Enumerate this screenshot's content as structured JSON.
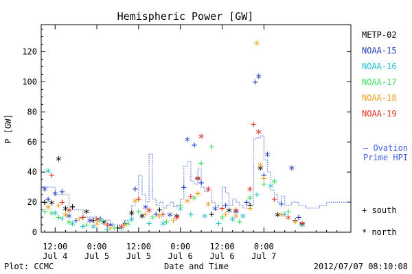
{
  "chart_data": {
    "type": "scatter",
    "title": "Hemispheric Power [GW]",
    "xlabel": "Date and Time",
    "ylabel": "P [GW]",
    "ylim": [
      0,
      138
    ],
    "xlim": [
      -4,
      85
    ],
    "yticks": [
      0,
      20,
      40,
      60,
      80,
      100,
      120
    ],
    "xticks": [
      {
        "x": 0,
        "time": "12:00",
        "date": "Jul 4"
      },
      {
        "x": 12,
        "time": "0:00",
        "date": "Jul 5"
      },
      {
        "x": 24,
        "time": "12:00",
        "date": "Jul 5"
      },
      {
        "x": 36,
        "time": "0:00",
        "date": "Jul 6"
      },
      {
        "x": 48,
        "time": "12:00",
        "date": "Jul 6"
      },
      {
        "x": 60,
        "time": "0:00",
        "date": "Jul 7"
      }
    ],
    "x_units": "hours after Jul 4 12:00",
    "series": [
      {
        "name": "METP-02",
        "color": "#000000",
        "points": [
          {
            "x": -3,
            "y": 20,
            "m": "+"
          },
          {
            "x": -1,
            "y": 19,
            "m": "*"
          },
          {
            "x": 1,
            "y": 48,
            "m": "*"
          },
          {
            "x": 3,
            "y": 15,
            "m": "*"
          },
          {
            "x": 5,
            "y": 17,
            "m": "+"
          },
          {
            "x": 9,
            "y": 13,
            "m": "*"
          },
          {
            "x": 11,
            "y": 8,
            "m": "+"
          },
          {
            "x": 14,
            "y": 6,
            "m": "*"
          },
          {
            "x": 18,
            "y": 3,
            "m": "+"
          },
          {
            "x": 22,
            "y": 12,
            "m": "*"
          },
          {
            "x": 25,
            "y": 10,
            "m": "*"
          },
          {
            "x": 30,
            "y": 15,
            "m": "+"
          },
          {
            "x": 35,
            "y": 10,
            "m": "*"
          },
          {
            "x": 41,
            "y": 35,
            "m": "*"
          },
          {
            "x": 45,
            "y": 12,
            "m": "+"
          },
          {
            "x": 50,
            "y": 14,
            "m": "*"
          },
          {
            "x": 56,
            "y": 18,
            "m": "+"
          },
          {
            "x": 59,
            "y": 42,
            "m": "*"
          },
          {
            "x": 64,
            "y": 11,
            "m": "*"
          },
          {
            "x": 69,
            "y": 8,
            "m": "+"
          },
          {
            "x": 71,
            "y": 5,
            "m": "*"
          }
        ]
      },
      {
        "name": "NOAA-15",
        "color": "#1f3fbf",
        "points": [
          {
            "x": -3,
            "y": 28,
            "m": "*"
          },
          {
            "x": -2,
            "y": 22,
            "m": "+"
          },
          {
            "x": 0,
            "y": 25,
            "m": "*"
          },
          {
            "x": 2,
            "y": 27,
            "m": "+"
          },
          {
            "x": 4,
            "y": 10,
            "m": "*"
          },
          {
            "x": 6,
            "y": 8,
            "m": "+"
          },
          {
            "x": 10,
            "y": 7,
            "m": "*"
          },
          {
            "x": 13,
            "y": 9,
            "m": "+"
          },
          {
            "x": 16,
            "y": 4,
            "m": "*"
          },
          {
            "x": 20,
            "y": 6,
            "m": "+"
          },
          {
            "x": 23,
            "y": 29,
            "m": "+"
          },
          {
            "x": 26,
            "y": 16,
            "m": "*"
          },
          {
            "x": 29,
            "y": 12,
            "m": "+"
          },
          {
            "x": 33,
            "y": 11,
            "m": "*"
          },
          {
            "x": 37,
            "y": 30,
            "m": "+"
          },
          {
            "x": 38,
            "y": 61,
            "m": "*"
          },
          {
            "x": 40,
            "y": 58,
            "m": "+"
          },
          {
            "x": 42,
            "y": 33,
            "m": "+"
          },
          {
            "x": 46,
            "y": 15,
            "m": "*"
          },
          {
            "x": 49,
            "y": 18,
            "m": "+"
          },
          {
            "x": 52,
            "y": 13,
            "m": "*"
          },
          {
            "x": 55,
            "y": 20,
            "m": "+"
          },
          {
            "x": 57.5,
            "y": 100,
            "m": "+"
          },
          {
            "x": 58.5,
            "y": 103,
            "m": "*"
          },
          {
            "x": 61,
            "y": 51,
            "m": "*"
          },
          {
            "x": 60,
            "y": 38,
            "m": "+"
          },
          {
            "x": 65,
            "y": 19,
            "m": "+"
          },
          {
            "x": 68,
            "y": 42,
            "m": "*"
          },
          {
            "x": 70,
            "y": 10,
            "m": "+"
          }
        ]
      },
      {
        "name": "NOAA-16",
        "color": "#1fbfcf",
        "points": [
          {
            "x": -2,
            "y": 40,
            "m": "*"
          },
          {
            "x": 0,
            "y": 12,
            "m": "*"
          },
          {
            "x": 2,
            "y": 9,
            "m": "+"
          },
          {
            "x": 5,
            "y": 5,
            "m": "*"
          },
          {
            "x": 8,
            "y": 4,
            "m": "+"
          },
          {
            "x": 11,
            "y": 3,
            "m": "*"
          },
          {
            "x": 15,
            "y": 2,
            "m": "+"
          },
          {
            "x": 19,
            "y": 2,
            "m": "*"
          },
          {
            "x": 22,
            "y": 8,
            "m": "*"
          },
          {
            "x": 27,
            "y": 6,
            "m": "+"
          },
          {
            "x": 31,
            "y": 5,
            "m": "*"
          },
          {
            "x": 36,
            "y": 15,
            "m": "*"
          },
          {
            "x": 39,
            "y": 12,
            "m": "+"
          },
          {
            "x": 43,
            "y": 10,
            "m": "*"
          },
          {
            "x": 47,
            "y": 6,
            "m": "+"
          },
          {
            "x": 51,
            "y": 8,
            "m": "*"
          },
          {
            "x": 54,
            "y": 10,
            "m": "*"
          },
          {
            "x": 58,
            "y": 25,
            "m": "+"
          },
          {
            "x": 62,
            "y": 30,
            "m": "*"
          },
          {
            "x": 66,
            "y": 12,
            "m": "+"
          },
          {
            "x": 71,
            "y": 4,
            "m": "*"
          }
        ]
      },
      {
        "name": "NOAA-17",
        "color": "#3fdf5f",
        "points": [
          {
            "x": -3,
            "y": 14,
            "m": "+"
          },
          {
            "x": -1,
            "y": 12,
            "m": "*"
          },
          {
            "x": 1,
            "y": 10,
            "m": "+"
          },
          {
            "x": 4,
            "y": 6,
            "m": "*"
          },
          {
            "x": 9,
            "y": 5,
            "m": "+"
          },
          {
            "x": 13,
            "y": 7,
            "m": "*"
          },
          {
            "x": 17,
            "y": 3,
            "m": "+"
          },
          {
            "x": 21,
            "y": 5,
            "m": "*"
          },
          {
            "x": 24,
            "y": 14,
            "m": "+"
          },
          {
            "x": 28,
            "y": 9,
            "m": "*"
          },
          {
            "x": 32,
            "y": 7,
            "m": "+"
          },
          {
            "x": 36,
            "y": 18,
            "m": "+"
          },
          {
            "x": 40,
            "y": 22,
            "m": "*"
          },
          {
            "x": 42,
            "y": 46,
            "m": "+"
          },
          {
            "x": 45,
            "y": 57,
            "m": "+"
          },
          {
            "x": 48,
            "y": 9,
            "m": "*"
          },
          {
            "x": 53,
            "y": 7,
            "m": "+"
          },
          {
            "x": 56,
            "y": 22,
            "m": "*"
          },
          {
            "x": 60,
            "y": 32,
            "m": "+"
          },
          {
            "x": 63,
            "y": 33,
            "m": "*"
          },
          {
            "x": 67,
            "y": 14,
            "m": "+"
          }
        ]
      },
      {
        "name": "NOAA-18",
        "color": "#ef9f1f",
        "points": [
          {
            "x": -2,
            "y": 16,
            "m": "*"
          },
          {
            "x": 1,
            "y": 18,
            "m": "+"
          },
          {
            "x": 3,
            "y": 11,
            "m": "*"
          },
          {
            "x": 7,
            "y": 9,
            "m": "+"
          },
          {
            "x": 12,
            "y": 5,
            "m": "*"
          },
          {
            "x": 16,
            "y": 3,
            "m": "+"
          },
          {
            "x": 20,
            "y": 4,
            "m": "*"
          },
          {
            "x": 23,
            "y": 20,
            "m": "*"
          },
          {
            "x": 26,
            "y": 12,
            "m": "+"
          },
          {
            "x": 30,
            "y": 10,
            "m": "*"
          },
          {
            "x": 34,
            "y": 8,
            "m": "+"
          },
          {
            "x": 38,
            "y": 20,
            "m": "*"
          },
          {
            "x": 41,
            "y": 26,
            "m": "+"
          },
          {
            "x": 44,
            "y": 18,
            "m": "*"
          },
          {
            "x": 49,
            "y": 12,
            "m": "+"
          },
          {
            "x": 52,
            "y": 10,
            "m": "*"
          },
          {
            "x": 56,
            "y": 16,
            "m": "+"
          },
          {
            "x": 58,
            "y": 125,
            "m": "*"
          },
          {
            "x": 59,
            "y": 44,
            "m": "*"
          },
          {
            "x": 60,
            "y": 36,
            "m": "+"
          },
          {
            "x": 65,
            "y": 11,
            "m": "*"
          },
          {
            "x": 69,
            "y": 7,
            "m": "+"
          }
        ]
      },
      {
        "name": "NOAA-19",
        "color": "#df2f1f",
        "points": [
          {
            "x": -1,
            "y": 38,
            "m": "+"
          },
          {
            "x": 2,
            "y": 20,
            "m": "+"
          },
          {
            "x": 4,
            "y": 14,
            "m": "*"
          },
          {
            "x": 8,
            "y": 10,
            "m": "+"
          },
          {
            "x": 12,
            "y": 8,
            "m": "*"
          },
          {
            "x": 15,
            "y": 5,
            "m": "+"
          },
          {
            "x": 19,
            "y": 3,
            "m": "*"
          },
          {
            "x": 24,
            "y": 22,
            "m": "+"
          },
          {
            "x": 27,
            "y": 14,
            "m": "*"
          },
          {
            "x": 31,
            "y": 12,
            "m": "+"
          },
          {
            "x": 35,
            "y": 9,
            "m": "*"
          },
          {
            "x": 39,
            "y": 24,
            "m": "+"
          },
          {
            "x": 42,
            "y": 63,
            "m": "*"
          },
          {
            "x": 41,
            "y": 36,
            "m": "+"
          },
          {
            "x": 44,
            "y": 28,
            "m": "*"
          },
          {
            "x": 48,
            "y": 16,
            "m": "+"
          },
          {
            "x": 52,
            "y": 14,
            "m": "*"
          },
          {
            "x": 57,
            "y": 72,
            "m": "+"
          },
          {
            "x": 58.5,
            "y": 66,
            "m": "*"
          },
          {
            "x": 56,
            "y": 28,
            "m": "*"
          },
          {
            "x": 63,
            "y": 22,
            "m": "+"
          },
          {
            "x": 67,
            "y": 9,
            "m": "*"
          },
          {
            "x": 71,
            "y": 6,
            "m": "+"
          }
        ]
      }
    ],
    "ovation": {
      "name": "Ovation Prime HPI",
      "color": "#3f5fdf",
      "x": [
        -4,
        0,
        4,
        8,
        12,
        16,
        20,
        22,
        23,
        24,
        25,
        26,
        27,
        28,
        29,
        30,
        31,
        32,
        33,
        34,
        35,
        36,
        37,
        38,
        39,
        40,
        41,
        42,
        43,
        44,
        45,
        46,
        47,
        48,
        49,
        50,
        51,
        52,
        53,
        54,
        55,
        56,
        57,
        58,
        59,
        60,
        61,
        62,
        63,
        64,
        65,
        66,
        68,
        70,
        72,
        74,
        76,
        78,
        80,
        82,
        85
      ],
      "y": [
        30,
        25,
        15,
        10,
        8,
        5,
        8,
        18,
        22,
        38,
        25,
        20,
        52,
        22,
        18,
        20,
        16,
        18,
        20,
        17,
        18,
        22,
        44,
        47,
        34,
        32,
        42,
        30,
        27,
        28,
        20,
        18,
        16,
        30,
        26,
        18,
        22,
        20,
        18,
        16,
        20,
        18,
        62,
        63,
        64,
        48,
        40,
        28,
        25,
        20,
        24,
        18,
        20,
        18,
        16,
        16,
        18,
        20,
        20,
        20,
        20
      ]
    },
    "legend": {
      "entries": [
        "METP-02",
        "NOAA-15",
        "NOAA-16",
        "NOAA-17",
        "NOAA-18",
        "NOAA-19"
      ],
      "ovation_label_line1": "— Ovation",
      "ovation_label_line2": "Prime HPI",
      "south_label": "+ south",
      "north_label": "* north"
    }
  },
  "footer": {
    "left": "Plot: CCMC",
    "right": "2012/07/07 08:10:08"
  },
  "colors": {
    "METP-02": "#000000",
    "NOAA-15": "#1f3fbf",
    "NOAA-16": "#1fbfcf",
    "NOAA-17": "#3fdf5f",
    "NOAA-18": "#ef9f1f",
    "NOAA-19": "#df2f1f"
  }
}
